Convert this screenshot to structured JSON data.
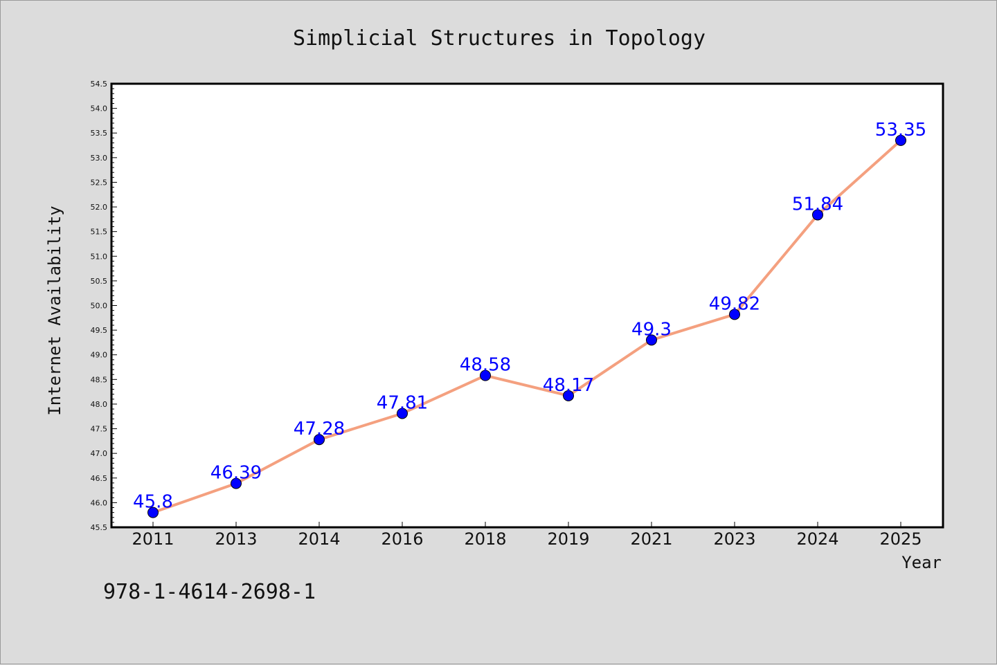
{
  "chart_data": {
    "type": "line",
    "title": "Simplicial Structures in Topology",
    "xlabel": "Year",
    "ylabel": "Internet Availability",
    "categories": [
      "2011",
      "2013",
      "2014",
      "2016",
      "2018",
      "2019",
      "2021",
      "2023",
      "2024",
      "2025"
    ],
    "series": [
      {
        "values": [
          45.8,
          46.39,
          47.28,
          47.81,
          48.58,
          48.17,
          49.3,
          49.82,
          51.84,
          53.35
        ],
        "labels": [
          "45.8",
          "46.39",
          "47.28",
          "47.81",
          "48.58",
          "48.17",
          "49.3",
          "49.82",
          "51.84",
          "53.35"
        ]
      }
    ],
    "ylim": [
      45.5,
      54.5
    ],
    "yticks": [
      "45.5",
      "46.0",
      "46.5",
      "47.0",
      "47.5",
      "48.0",
      "48.5",
      "49.0",
      "49.5",
      "50.0",
      "50.5",
      "51.0",
      "51.5",
      "52.0",
      "52.5",
      "53.0",
      "53.5",
      "54.0",
      "54.5"
    ],
    "grid": false,
    "colors": {
      "line": "#f4a07f",
      "marker": "#0000ff",
      "data_label": "#0000ff",
      "background": "#dcdcdc",
      "plot_area": "#ffffff"
    }
  },
  "footer": {
    "isbn": "978-1-4614-2698-1"
  }
}
